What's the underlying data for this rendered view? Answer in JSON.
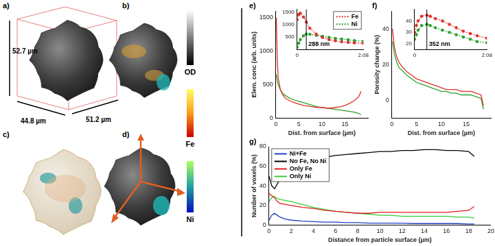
{
  "image_panels": {
    "a": {
      "label": "a)",
      "dimensions": [
        "52.7 µm",
        "44.8 µm",
        "51.2 µm"
      ]
    },
    "b": {
      "label": "b)"
    },
    "c": {
      "label": "c)"
    },
    "d": {
      "label": "d)"
    },
    "colorbars": [
      "OD",
      "Fe",
      "Ni"
    ]
  },
  "chart_data": [
    {
      "type": "line",
      "title": "e)",
      "x_label": "Dist. from surface (µm)",
      "y_label": "Elem. conc (arb. units)",
      "xlim": [
        0,
        20
      ],
      "xticks": [
        0,
        5,
        10,
        15
      ],
      "ylim": [
        0,
        1600
      ],
      "yticks": [
        0,
        500,
        1000,
        1500
      ],
      "grid": false,
      "x": [
        0.1,
        0.3,
        0.5,
        1,
        1.5,
        2,
        3,
        4,
        5,
        6,
        7,
        8,
        9,
        10,
        11,
        12,
        13,
        14,
        15,
        16,
        17,
        18,
        18.5
      ],
      "series": [
        {
          "name": "Fe",
          "color": "#e0302a",
          "line_style": "solid",
          "values": [
            1500,
            900,
            600,
            420,
            350,
            300,
            260,
            230,
            210,
            190,
            180,
            170,
            160,
            160,
            150,
            150,
            160,
            170,
            190,
            220,
            260,
            320,
            400
          ]
        },
        {
          "name": "Ni",
          "color": "#2ca02c",
          "line_style": "solid",
          "values": [
            650,
            560,
            500,
            420,
            370,
            340,
            300,
            270,
            250,
            230,
            210,
            190,
            170,
            160,
            150,
            140,
            130,
            120,
            110,
            100,
            90,
            70,
            50
          ]
        }
      ]
    },
    {
      "type": "line",
      "xlim": [
        0,
        2.08
      ],
      "xticks": [
        0,
        2.08
      ],
      "ylim": [
        0,
        1600
      ],
      "yticks": [
        500,
        1000,
        1500
      ],
      "grid": false,
      "legend": "upper right",
      "x": [
        0,
        0.05,
        0.1,
        0.2,
        0.288,
        0.4,
        0.6,
        0.8,
        1.0,
        1.2,
        1.4,
        1.6,
        1.8,
        2.08
      ],
      "annotations": [
        {
          "x": 0.288,
          "text": "288 nm"
        }
      ],
      "series": [
        {
          "name": "Fe",
          "color": "#e0302a",
          "marker": "circle",
          "line_style": "dotted",
          "values": [
            1200,
            1400,
            1450,
            1300,
            1100,
            850,
            620,
            480,
            400,
            350,
            310,
            290,
            270,
            250
          ]
        },
        {
          "name": "Ni",
          "color": "#2ca02c",
          "marker": "circle",
          "line_style": "dotted",
          "values": [
            100,
            250,
            400,
            550,
            620,
            610,
            570,
            530,
            490,
            450,
            420,
            390,
            360,
            330
          ]
        }
      ]
    },
    {
      "type": "line",
      "title": "f)",
      "x_label": "Dist. from surface (µm)",
      "y_label": "Porosity change (%)",
      "xlim": [
        0,
        20
      ],
      "xticks": [
        0,
        5,
        10,
        15
      ],
      "ylim": [
        -10,
        50
      ],
      "yticks": [
        0,
        20,
        40
      ],
      "grid": false,
      "x": [
        0.1,
        0.3,
        0.5,
        1,
        1.5,
        2,
        3,
        4,
        5,
        6,
        7,
        8,
        9,
        10,
        11,
        12,
        13,
        14,
        15,
        16,
        17,
        18,
        18.5
      ],
      "series": [
        {
          "name": "Fe",
          "color": "#e0302a",
          "line_style": "solid",
          "values": [
            40,
            35,
            30,
            24,
            21,
            19,
            16,
            14,
            12,
            11,
            10,
            9,
            8,
            7,
            6,
            6,
            6,
            5,
            5,
            5,
            4,
            3,
            -3
          ]
        },
        {
          "name": "Ni",
          "color": "#2ca02c",
          "line_style": "solid",
          "values": [
            33,
            30,
            26,
            21,
            18,
            17,
            14,
            12,
            10,
            9,
            8,
            7,
            6,
            5,
            5,
            4,
            4,
            3,
            3,
            3,
            2,
            1,
            -5
          ]
        }
      ]
    },
    {
      "type": "line",
      "xlim": [
        0,
        2.08
      ],
      "xticks": [
        0,
        2.08
      ],
      "ylim": [
        15,
        50
      ],
      "yticks": [
        20,
        30,
        40
      ],
      "grid": false,
      "x": [
        0,
        0.05,
        0.1,
        0.2,
        0.352,
        0.45,
        0.6,
        0.8,
        1.0,
        1.2,
        1.4,
        1.6,
        1.8,
        2.08
      ],
      "annotations": [
        {
          "x": 0.352,
          "text": "352 nm"
        }
      ],
      "series": [
        {
          "name": "Fe",
          "color": "#e0302a",
          "marker": "circle",
          "line_style": "dotted",
          "values": [
            30,
            36,
            40,
            44,
            45,
            44,
            42,
            40,
            37,
            34,
            31,
            29,
            27,
            25
          ]
        },
        {
          "name": "Ni",
          "color": "#2ca02c",
          "marker": "circle",
          "line_style": "dotted",
          "values": [
            24,
            28,
            32,
            36,
            37,
            36,
            34,
            32,
            30,
            28,
            26,
            24,
            22,
            21
          ]
        }
      ]
    },
    {
      "type": "line",
      "title": "g)",
      "x_label": "Distance from particle surface (µm)",
      "y_label": "Number of voxels (%)",
      "xlim": [
        0,
        20
      ],
      "xticks": [
        0,
        2,
        4,
        6,
        8,
        10,
        12,
        14,
        16,
        18,
        20
      ],
      "ylim": [
        0,
        80
      ],
      "yticks": [
        0,
        20,
        40,
        60,
        80
      ],
      "grid": false,
      "legend": "upper left",
      "x": [
        0,
        0.25,
        0.5,
        0.75,
        1,
        1.5,
        2,
        3,
        4,
        5,
        6,
        7,
        8,
        9,
        10,
        11,
        12,
        13,
        14,
        15,
        16,
        17,
        18,
        18.5
      ],
      "series": [
        {
          "name": "Ni+Fe",
          "color": "#1f3fbf",
          "line_style": "solid",
          "values": [
            5,
            10,
            12,
            10,
            8,
            6,
            5,
            4,
            3.5,
            3,
            3,
            2.5,
            2.5,
            2,
            2,
            2,
            2,
            1.5,
            1.5,
            1.5,
            1.5,
            1.5,
            1,
            1
          ]
        },
        {
          "name": "No Fe, No Ni",
          "color": "#000000",
          "line_style": "solid",
          "values": [
            50,
            40,
            37,
            42,
            47,
            52,
            56,
            62,
            66,
            69,
            71,
            72,
            73,
            74,
            75,
            75,
            76,
            76,
            77,
            77,
            76,
            76,
            75,
            70
          ]
        },
        {
          "name": "Only Fe",
          "color": "#e41a1c",
          "line_style": "solid",
          "values": [
            32,
            30,
            28,
            24,
            22,
            21,
            20,
            18,
            17,
            15,
            14,
            13,
            12,
            12,
            13,
            13,
            13,
            13,
            13,
            13,
            13,
            14,
            15,
            19
          ]
        },
        {
          "name": "Only Ni",
          "color": "#33cc33",
          "line_style": "solid",
          "values": [
            24,
            28,
            29,
            27,
            26,
            25,
            24,
            21,
            18,
            16,
            14,
            13,
            12,
            11,
            10,
            10,
            9,
            9,
            9,
            9,
            9,
            8,
            8,
            7
          ]
        }
      ]
    }
  ]
}
